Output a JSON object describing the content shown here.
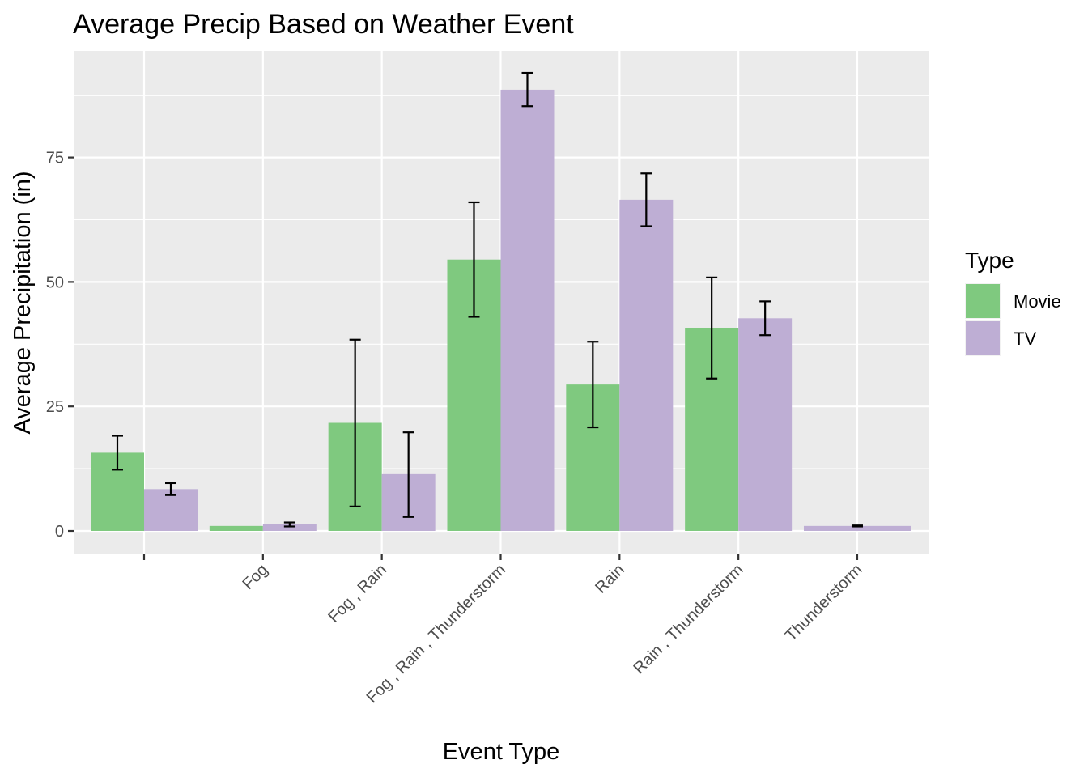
{
  "chart_data": {
    "type": "bar",
    "title": "Average Precip Based on Weather Event",
    "xlabel": "Event Type",
    "ylabel": "Average Precipitation (in)",
    "categories": [
      "",
      "Fog",
      "Fog , Rain",
      "Fog , Rain , Thunderstorm",
      "Rain",
      "Rain , Thunderstorm",
      "Thunderstorm"
    ],
    "ylim": [
      -4.5,
      96.5
    ],
    "yticks": [
      0,
      25,
      50,
      75
    ],
    "ytick_labels": [
      "0",
      "25",
      "50",
      "75"
    ],
    "grid": true,
    "legend": {
      "title": "Type",
      "position": "right"
    },
    "series": [
      {
        "name": "Movie",
        "color": "#7fc97f",
        "values": [
          15.7,
          1.0,
          21.7,
          54.5,
          29.4,
          40.8,
          null
        ],
        "error_low": [
          12.3,
          null,
          4.9,
          43.0,
          20.8,
          30.6,
          null
        ],
        "error_high": [
          19.1,
          null,
          38.4,
          66.0,
          38.0,
          50.9,
          null
        ]
      },
      {
        "name": "TV",
        "color": "#beaed4",
        "values": [
          8.4,
          1.3,
          11.4,
          88.6,
          66.5,
          42.7,
          1.0
        ],
        "error_low": [
          7.2,
          0.9,
          2.8,
          85.3,
          61.2,
          39.3,
          0.9
        ],
        "error_high": [
          9.6,
          1.7,
          19.8,
          92.0,
          71.8,
          46.1,
          1.1
        ]
      }
    ]
  }
}
